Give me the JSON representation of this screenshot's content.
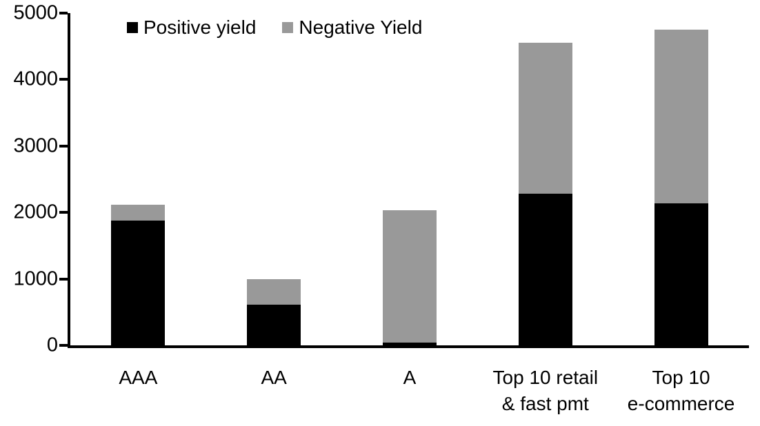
{
  "chart_data": {
    "type": "bar",
    "stacked": true,
    "title": "",
    "categories": [
      "AAA",
      "AA",
      "A",
      "Top 10 retail\n& fast pmt",
      "Top 10\ne-commerce"
    ],
    "series": [
      {
        "name": "Positive yield",
        "color": "#000000",
        "values": [
          1880,
          610,
          40,
          2280,
          2140
        ]
      },
      {
        "name": "Negative Yield",
        "color": "#999999",
        "values": [
          240,
          390,
          1990,
          2270,
          2610
        ]
      }
    ],
    "totals": [
      2120,
      1000,
      2030,
      4550,
      4750
    ],
    "xlabel": "",
    "ylabel": "",
    "ylim": [
      0,
      5000
    ],
    "yticks": [
      0,
      1000,
      2000,
      3000,
      4000,
      5000
    ],
    "grid": false,
    "legend_position": "top"
  },
  "colors": {
    "background": "#ffffff",
    "axis": "#000000",
    "positive": "#000000",
    "negative": "#999999"
  }
}
